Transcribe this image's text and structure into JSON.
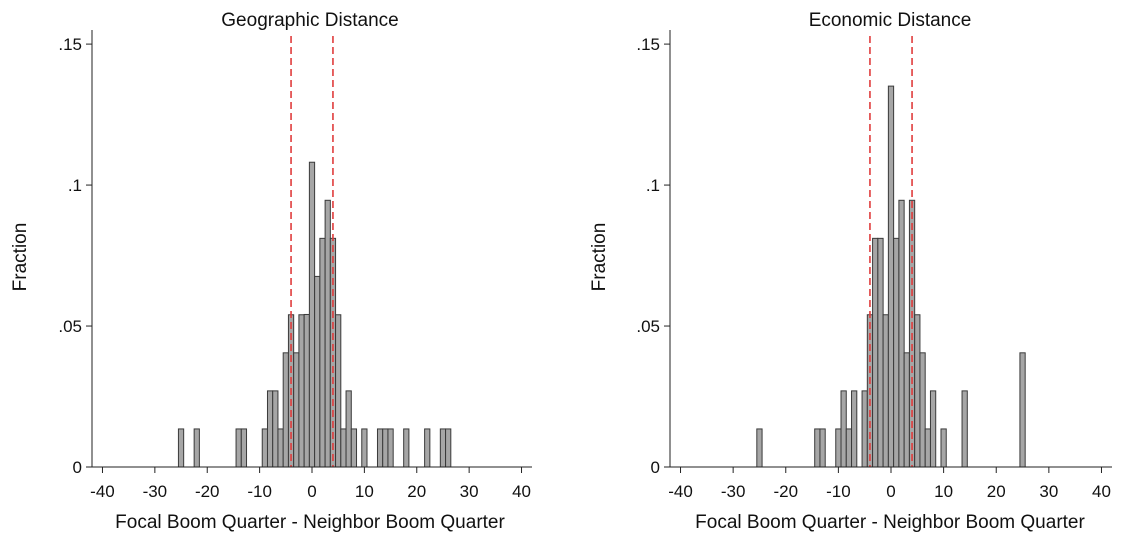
{
  "chart_data": [
    {
      "type": "bar",
      "title": "Geographic Distance",
      "xlabel": "Focal Boom Quarter - Neighbor Boom Quarter",
      "ylabel": "Fraction",
      "xlim": [
        -42,
        42
      ],
      "ylim": [
        0,
        0.155
      ],
      "xticks": [
        -40,
        -30,
        -20,
        -10,
        0,
        10,
        20,
        30,
        40
      ],
      "xtick_labels": [
        "-40",
        "-30",
        "-20",
        "-10",
        "0",
        "10",
        "20",
        "30",
        "40"
      ],
      "yticks": [
        0,
        0.05,
        0.1,
        0.15
      ],
      "ytick_labels": [
        "0",
        ".05",
        ".1",
        ".15"
      ],
      "bin_width": 1,
      "bar_color": "#a6a6a6",
      "bar_edge_color": "#3a3a3a",
      "reference_lines": {
        "x": [
          -4,
          4
        ],
        "color": "#e03c3c",
        "style": "dashed"
      },
      "bins": [
        {
          "x": -25,
          "y": 0.0135
        },
        {
          "x": -22,
          "y": 0.0135
        },
        {
          "x": -14,
          "y": 0.0135
        },
        {
          "x": -13,
          "y": 0.0135
        },
        {
          "x": -9,
          "y": 0.0135
        },
        {
          "x": -8,
          "y": 0.027
        },
        {
          "x": -7,
          "y": 0.027
        },
        {
          "x": -6,
          "y": 0.0135
        },
        {
          "x": -5,
          "y": 0.0405
        },
        {
          "x": -4,
          "y": 0.054
        },
        {
          "x": -3,
          "y": 0.0405
        },
        {
          "x": -2,
          "y": 0.054
        },
        {
          "x": -1,
          "y": 0.0541
        },
        {
          "x": 0,
          "y": 0.1081
        },
        {
          "x": 1,
          "y": 0.0676
        },
        {
          "x": 2,
          "y": 0.0811
        },
        {
          "x": 3,
          "y": 0.0946
        },
        {
          "x": 4,
          "y": 0.0811
        },
        {
          "x": 5,
          "y": 0.054
        },
        {
          "x": 6,
          "y": 0.0135
        },
        {
          "x": 7,
          "y": 0.027
        },
        {
          "x": 8,
          "y": 0.0135
        },
        {
          "x": 10,
          "y": 0.0135
        },
        {
          "x": 13,
          "y": 0.0135
        },
        {
          "x": 14,
          "y": 0.0135
        },
        {
          "x": 15,
          "y": 0.0135
        },
        {
          "x": 18,
          "y": 0.0135
        },
        {
          "x": 22,
          "y": 0.0135
        },
        {
          "x": 25,
          "y": 0.0135
        },
        {
          "x": 26,
          "y": 0.0135
        }
      ]
    },
    {
      "type": "bar",
      "title": "Economic Distance",
      "xlabel": "Focal Boom Quarter - Neighbor Boom Quarter",
      "ylabel": "Fraction",
      "xlim": [
        -42,
        42
      ],
      "ylim": [
        0,
        0.155
      ],
      "xticks": [
        -40,
        -30,
        -20,
        -10,
        0,
        10,
        20,
        30,
        40
      ],
      "xtick_labels": [
        "-40",
        "-30",
        "-20",
        "-10",
        "0",
        "10",
        "20",
        "30",
        "40"
      ],
      "yticks": [
        0,
        0.05,
        0.1,
        0.15
      ],
      "ytick_labels": [
        "0",
        ".05",
        ".1",
        ".15"
      ],
      "bin_width": 1,
      "bar_color": "#a6a6a6",
      "bar_edge_color": "#3a3a3a",
      "reference_lines": {
        "x": [
          -4,
          4
        ],
        "color": "#e03c3c",
        "style": "dashed"
      },
      "bins": [
        {
          "x": -25,
          "y": 0.0135
        },
        {
          "x": -14,
          "y": 0.0135
        },
        {
          "x": -13,
          "y": 0.0135
        },
        {
          "x": -10,
          "y": 0.0135
        },
        {
          "x": -9,
          "y": 0.027
        },
        {
          "x": -8,
          "y": 0.0135
        },
        {
          "x": -7,
          "y": 0.027
        },
        {
          "x": -5,
          "y": 0.027
        },
        {
          "x": -4,
          "y": 0.054
        },
        {
          "x": -3,
          "y": 0.0811
        },
        {
          "x": -2,
          "y": 0.0811
        },
        {
          "x": -1,
          "y": 0.054
        },
        {
          "x": 0,
          "y": 0.1351
        },
        {
          "x": 1,
          "y": 0.0811
        },
        {
          "x": 2,
          "y": 0.0946
        },
        {
          "x": 3,
          "y": 0.0405
        },
        {
          "x": 4,
          "y": 0.0946
        },
        {
          "x": 5,
          "y": 0.054
        },
        {
          "x": 6,
          "y": 0.0405
        },
        {
          "x": 7,
          "y": 0.0135
        },
        {
          "x": 8,
          "y": 0.027
        },
        {
          "x": 10,
          "y": 0.0135
        },
        {
          "x": 14,
          "y": 0.027
        },
        {
          "x": 25,
          "y": 0.0405
        }
      ]
    }
  ]
}
